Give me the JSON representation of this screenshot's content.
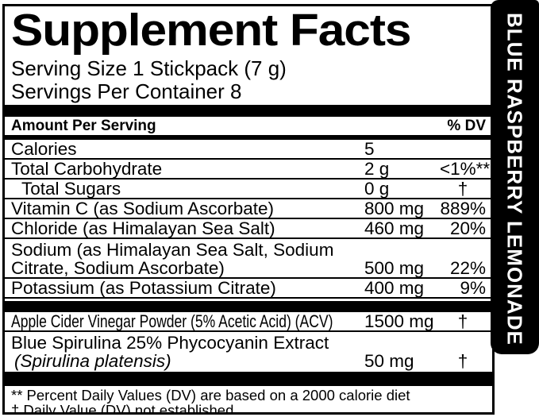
{
  "panel": {
    "title": "Supplement Facts",
    "serving_size": "Serving Size 1 Stickpack (7 g)",
    "servings_per_container": "Servings Per Container 8",
    "column_headers": {
      "amount": "Amount Per Serving",
      "dv": "% DV"
    },
    "main_rows": [
      {
        "name": "Calories",
        "amount": "5",
        "dv": ""
      },
      {
        "name": "Total Carbohydrate",
        "amount": "2 g",
        "dv": "<1%**"
      },
      {
        "name": "Total Sugars",
        "amount": "0 g",
        "dv": "†"
      },
      {
        "name": "Vitamin C (as Sodium Ascorbate)",
        "amount": "800 mg",
        "dv": "889%"
      },
      {
        "name": "Chloride (as Himalayan Sea Salt)",
        "amount": "460 mg",
        "dv": "20%"
      },
      {
        "name": "Sodium (as Himalayan Sea Salt, Sodium",
        "name2": "Citrate, Sodium Ascorbate)",
        "amount": "500 mg",
        "dv": "22%"
      },
      {
        "name": "Potassium (as Potassium Citrate)",
        "amount": "400 mg",
        "dv": "9%"
      }
    ],
    "extra_rows": [
      {
        "name": "Apple Cider Vinegar Powder (5% Acetic Acid) (ACV)",
        "amount": "1500 mg",
        "dv": "†"
      },
      {
        "name": "Blue Spirulina 25% Phycocyanin Extract",
        "name2": "(Spirulina platensis)",
        "amount": "50 mg",
        "dv": "†"
      }
    ],
    "footnotes": [
      "** Percent Daily Values (DV) are based on a 2000 calorie diet",
      "† Daily Value (DV) not established"
    ]
  },
  "flavor": {
    "text": "BLUE RASPBERRY LEMONADE"
  },
  "colors": {
    "ink": "#000000",
    "paper": "#ffffff",
    "strip_bg": "#000000",
    "strip_text": "#ffffff"
  }
}
